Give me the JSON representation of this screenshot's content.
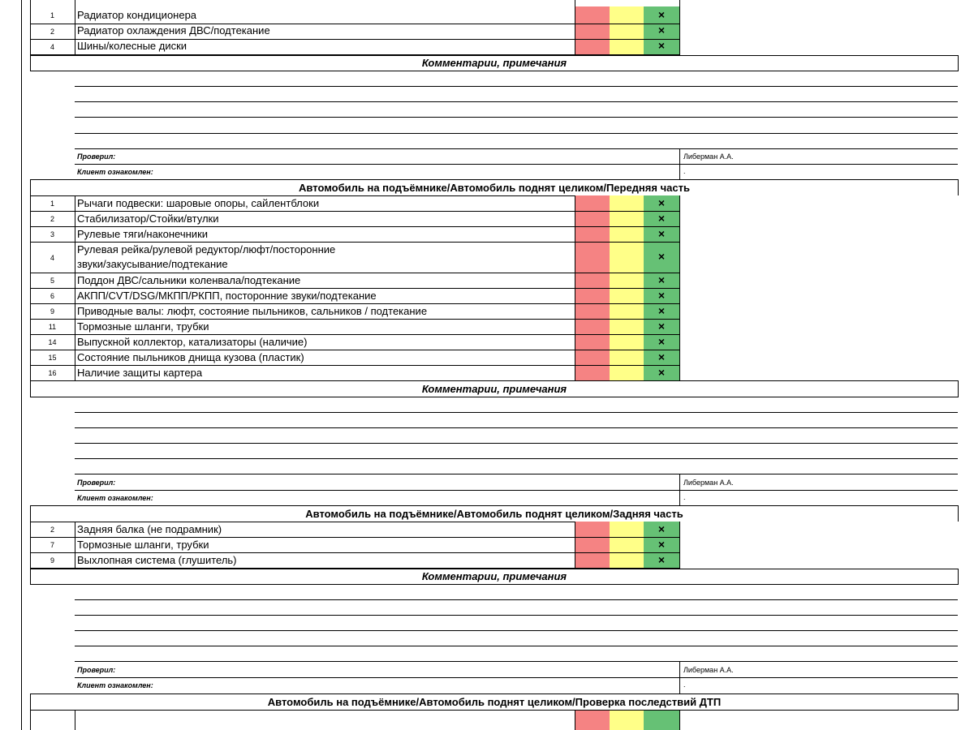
{
  "s0_rows": [
    {
      "n": "1",
      "t": "Радиатор кондиционера",
      "mark": "×"
    },
    {
      "n": "2",
      "t": "Радиатор охлаждения ДВС/подтекание",
      "mark": "×"
    },
    {
      "n": "4",
      "t": "Шины/колесные диски",
      "mark": "×"
    }
  ],
  "comments_label": "Комментарии, примечания",
  "checked_label": "Проверил:",
  "client_label": "Клиент ознакомлен:",
  "checked_value": "Либерман А.А.",
  "client_value": ".",
  "section1_title": "Автомобиль на подъёмнике/Автомобиль поднят целиком/Передняя часть",
  "s1_rows": [
    {
      "n": "1",
      "t": "Рычаги подвески: шаровые опоры, сайлентблоки",
      "mark": "×"
    },
    {
      "n": "2",
      "t": "Стабилизатор/Стойки/втулки",
      "mark": "×"
    },
    {
      "n": "3",
      "t": "Рулевые тяги/наконечники",
      "mark": "×"
    },
    {
      "n": "4",
      "t": "Рулевая рейка/рулевой редуктор/люфт/посторонние",
      "t2": "звуки/закусывание/подтекание",
      "mark": "×"
    },
    {
      "n": "5",
      "t": "Поддон ДВС/сальники коленвала/подтекание",
      "mark": "×"
    },
    {
      "n": "6",
      "t": "АКПП/CVT/DSG/МКПП/РКПП, посторонние звуки/подтекание",
      "mark": "×"
    },
    {
      "n": "9",
      "t": "Приводные валы: люфт, состояние пыльников, сальников / подтекание",
      "mark": "×"
    },
    {
      "n": "11",
      "t": "Тормозные шланги, трубки",
      "mark": "×"
    },
    {
      "n": "14",
      "t": "Выпускной коллектор, катализаторы (наличие)",
      "mark": "×"
    },
    {
      "n": "15",
      "t": "Состояние пыльников днища кузова (пластик)",
      "mark": "×"
    },
    {
      "n": "16",
      "t": "Наличие защиты картера",
      "mark": "×"
    }
  ],
  "section2_title": "Автомобиль на подъёмнике/Автомобиль поднят целиком/Задняя часть",
  "s2_rows": [
    {
      "n": "2",
      "t": "Задняя балка (не подрамник)",
      "mark": "×"
    },
    {
      "n": "7",
      "t": "Тормозные шланги, трубки",
      "mark": "×"
    },
    {
      "n": "9",
      "t": "Выхлопная система (глушитель)",
      "mark": "×"
    }
  ],
  "section3_title": "Автомобиль на подъёмнике/Автомобиль поднят целиком/Проверка последствий ДТП"
}
